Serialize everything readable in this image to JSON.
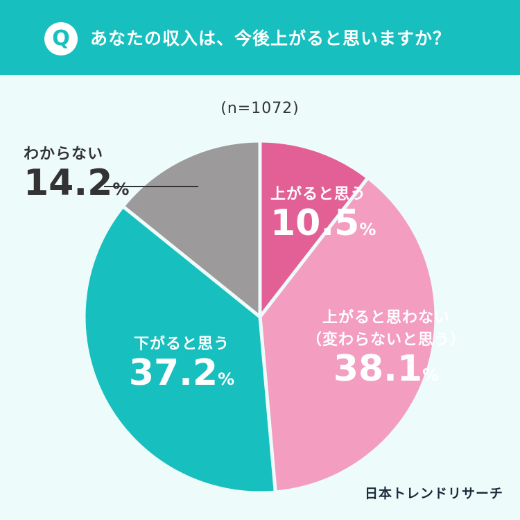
{
  "header": {
    "q_mark": "Q",
    "question": "あなたの収入は、今後上がると思いますか？"
  },
  "sample": "(n=1072)",
  "colors": {
    "header_bg": "#17bfbe",
    "background": "#eefbfb"
  },
  "chart_data": {
    "type": "pie",
    "categories": [
      "上がると思う",
      "上がると思わない（変わらないと思う）",
      "下がると思う",
      "わからない"
    ],
    "values": [
      10.5,
      38.1,
      37.2,
      14.2
    ],
    "colors": [
      "#e26096",
      "#f39dc1",
      "#17bfbe",
      "#9c9a9b"
    ],
    "unit": "%",
    "start": "12 o'clock, clockwise",
    "labels": [
      {
        "lines": [
          "上がると思う"
        ],
        "value": "10.5"
      },
      {
        "lines": [
          "上がると思わない",
          "（変わらないと思う）"
        ],
        "value": "38.1"
      },
      {
        "lines": [
          "下がると思う"
        ],
        "value": "37.2"
      },
      {
        "lines": [
          "わからない"
        ],
        "value": "14.2"
      }
    ]
  },
  "brand": "日本トレンドリサーチ"
}
